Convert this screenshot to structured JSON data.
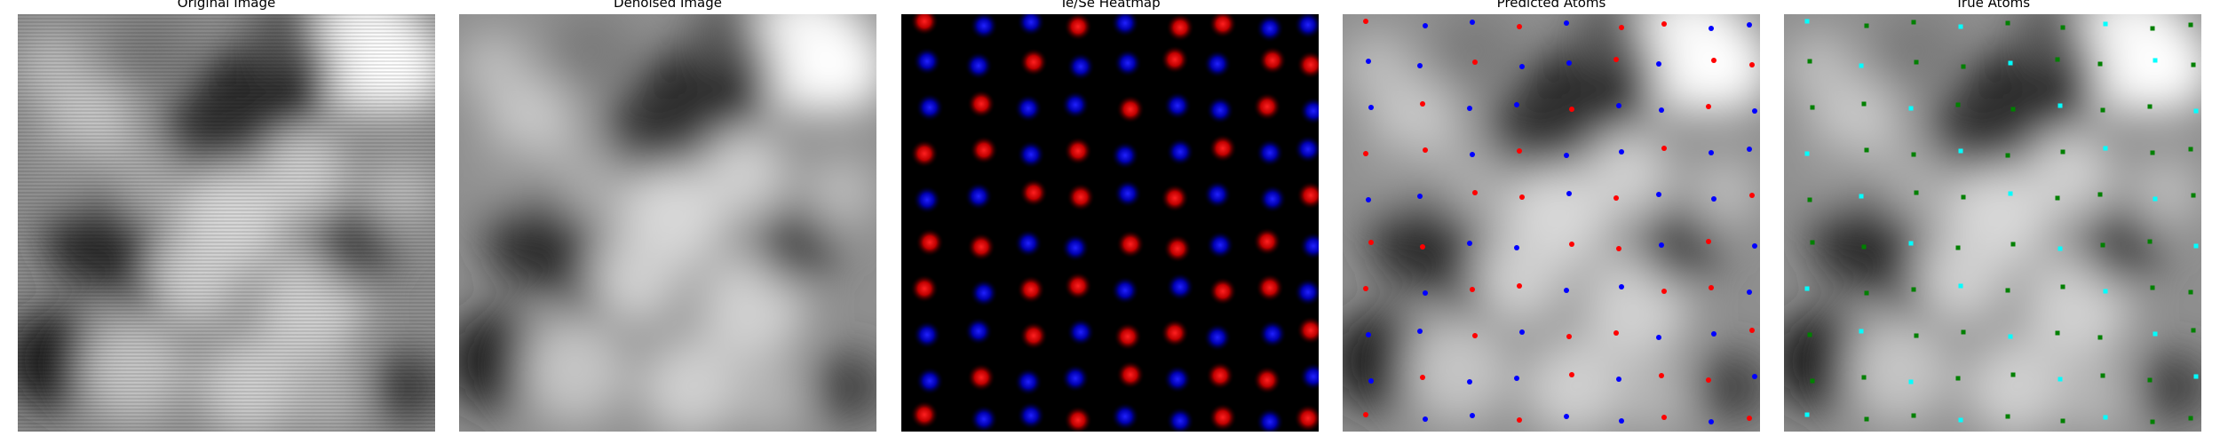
{
  "figure": {
    "panels": [
      {
        "id": "original",
        "title": "Original Image"
      },
      {
        "id": "denoised",
        "title": "Denoised Image"
      },
      {
        "id": "heatmap",
        "title": "Te/Se Heatmap"
      },
      {
        "id": "predicted",
        "title": "Predicted Atoms"
      },
      {
        "id": "true",
        "title": "True Atoms"
      }
    ],
    "colors": {
      "te_heat": "#ff1a1a",
      "se_heat": "#1a1aff",
      "pred_te": "#ff0000",
      "pred_se": "#0000ff",
      "true_te": "#00ffff",
      "true_se": "#008000"
    }
  }
}
